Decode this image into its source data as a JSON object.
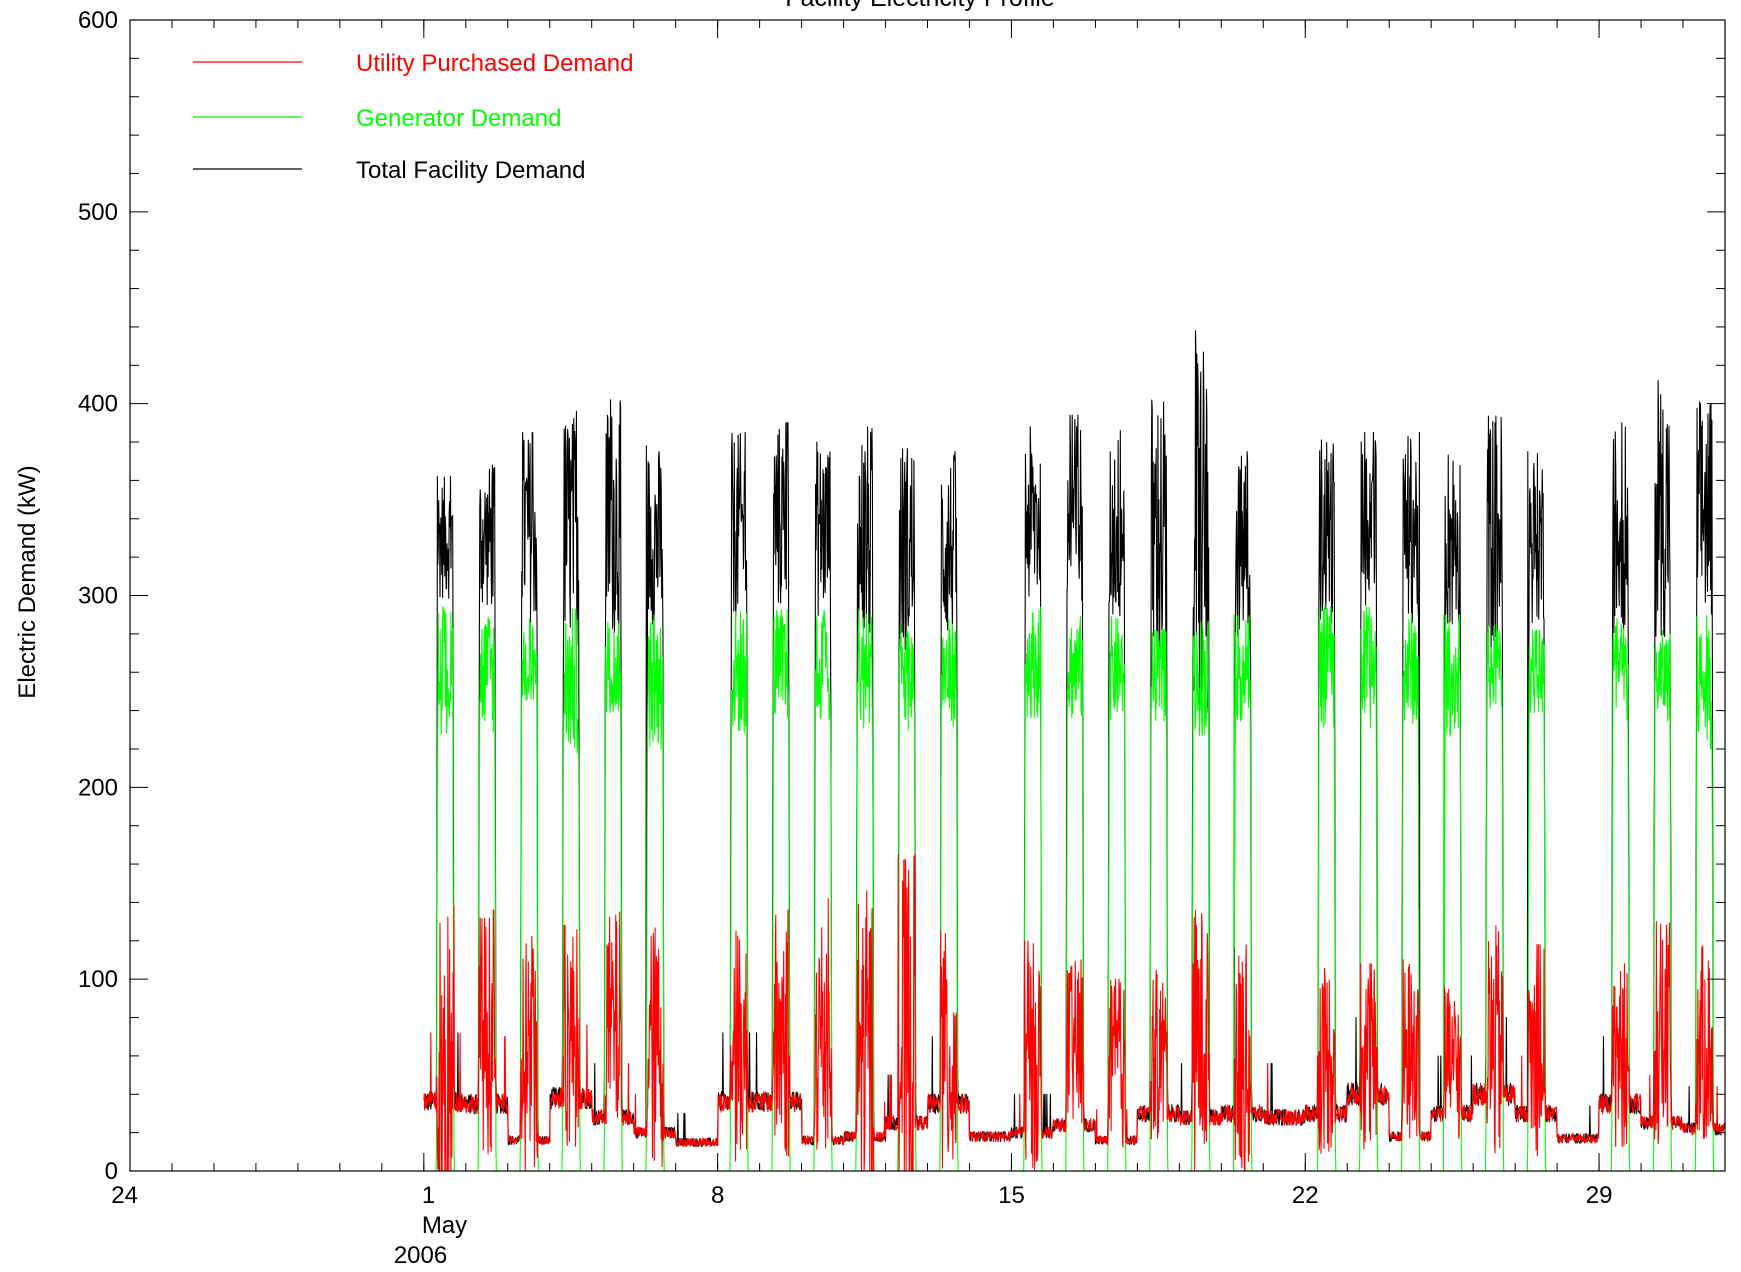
{
  "chart_data": {
    "type": "line",
    "title": "Facility Electricity Profile",
    "xlabel": "",
    "ylabel": "Electric Demand (kW)",
    "xlim": [
      "2006-04-24",
      "2006-06-01"
    ],
    "ylim": [
      0,
      600
    ],
    "x_ticks": [
      {
        "label": "24",
        "date": "2006-04-24"
      },
      {
        "label": "1",
        "date": "2006-05-01"
      },
      {
        "label": "8",
        "date": "2006-05-08"
      },
      {
        "label": "15",
        "date": "2006-05-15"
      },
      {
        "label": "22",
        "date": "2006-05-22"
      },
      {
        "label": "29",
        "date": "2006-05-29"
      }
    ],
    "x_tick_sublabels": [
      "May",
      "2006"
    ],
    "y_ticks": [
      0,
      100,
      200,
      300,
      400,
      500,
      600
    ],
    "legend_position": "top-left",
    "grid": false,
    "data_range": [
      "2006-05-01",
      "2006-05-31"
    ],
    "sample_interval_minutes": 15,
    "series": [
      {
        "name": "Utility Purchased Demand",
        "color": "#ff0000",
        "daily": [
          {
            "date": "2006-05-01",
            "peak": 138,
            "level": 30,
            "base": 36
          },
          {
            "date": "2006-05-02",
            "peak": 136,
            "level": 72,
            "base": 35
          },
          {
            "date": "2006-05-03",
            "peak": 130,
            "level": 60,
            "base": 16
          },
          {
            "date": "2006-05-04",
            "peak": 128,
            "level": 70,
            "base": 38
          },
          {
            "date": "2006-05-05",
            "peak": 135,
            "level": 75,
            "base": 28
          },
          {
            "date": "2006-05-06",
            "peak": 130,
            "level": 65,
            "base": 20
          },
          {
            "date": "2006-05-07",
            "peak": 0,
            "level": 0,
            "base": 15
          },
          {
            "date": "2006-05-08",
            "peak": 125,
            "level": 65,
            "base": 36
          },
          {
            "date": "2006-05-09",
            "peak": 136,
            "level": 70,
            "base": 36
          },
          {
            "date": "2006-05-10",
            "peak": 142,
            "level": 70,
            "base": 16
          },
          {
            "date": "2006-05-11",
            "peak": 148,
            "level": 60,
            "base": 18
          },
          {
            "date": "2006-05-12",
            "peak": 165,
            "level": 62,
            "base": 25
          },
          {
            "date": "2006-05-13",
            "peak": 125,
            "level": 58,
            "base": 35
          },
          {
            "date": "2006-05-14",
            "peak": 0,
            "level": 0,
            "base": 18
          },
          {
            "date": "2006-05-15",
            "peak": 120,
            "level": 60,
            "base": 20
          },
          {
            "date": "2006-05-16",
            "peak": 110,
            "level": 65,
            "base": 24
          },
          {
            "date": "2006-05-17",
            "peak": 100,
            "level": 55,
            "base": 16
          },
          {
            "date": "2006-05-18",
            "peak": 105,
            "level": 60,
            "base": 30
          },
          {
            "date": "2006-05-19",
            "peak": 140,
            "level": 70,
            "base": 28
          },
          {
            "date": "2006-05-20",
            "peak": 118,
            "level": 55,
            "base": 30
          },
          {
            "date": "2006-05-21",
            "peak": 0,
            "level": 0,
            "base": 28
          },
          {
            "date": "2006-05-22",
            "peak": 112,
            "level": 60,
            "base": 30
          },
          {
            "date": "2006-05-23",
            "peak": 108,
            "level": 58,
            "base": 40
          },
          {
            "date": "2006-05-24",
            "peak": 112,
            "level": 62,
            "base": 18
          },
          {
            "date": "2006-05-25",
            "peak": 95,
            "level": 55,
            "base": 30
          },
          {
            "date": "2006-05-26",
            "peak": 128,
            "level": 65,
            "base": 40
          },
          {
            "date": "2006-05-27",
            "peak": 118,
            "level": 62,
            "base": 30
          },
          {
            "date": "2006-05-28",
            "peak": 0,
            "level": 0,
            "base": 17
          },
          {
            "date": "2006-05-29",
            "peak": 108,
            "level": 60,
            "base": 35
          },
          {
            "date": "2006-05-30",
            "peak": 130,
            "level": 70,
            "base": 25
          },
          {
            "date": "2006-05-31",
            "peak": 118,
            "level": 65,
            "base": 22
          }
        ]
      },
      {
        "name": "Generator Demand",
        "color": "#00ff00",
        "daily": [
          {
            "date": "2006-05-01",
            "peak": 294,
            "level": 260,
            "base": 0
          },
          {
            "date": "2006-05-02",
            "peak": 293,
            "level": 260,
            "base": 0
          },
          {
            "date": "2006-05-03",
            "peak": 288,
            "level": 265,
            "base": 0
          },
          {
            "date": "2006-05-04",
            "peak": 294,
            "level": 255,
            "base": 0
          },
          {
            "date": "2006-05-05",
            "peak": 286,
            "level": 262,
            "base": 0
          },
          {
            "date": "2006-05-06",
            "peak": 290,
            "level": 255,
            "base": 0
          },
          {
            "date": "2006-05-07",
            "peak": 0,
            "level": 0,
            "base": 0
          },
          {
            "date": "2006-05-08",
            "peak": 294,
            "level": 260,
            "base": 0
          },
          {
            "date": "2006-05-09",
            "peak": 294,
            "level": 262,
            "base": 0
          },
          {
            "date": "2006-05-10",
            "peak": 292,
            "level": 262,
            "base": 0
          },
          {
            "date": "2006-05-11",
            "peak": 293,
            "level": 260,
            "base": 0
          },
          {
            "date": "2006-05-12",
            "peak": 288,
            "level": 258,
            "base": 0
          },
          {
            "date": "2006-05-13",
            "peak": 288,
            "level": 260,
            "base": 0
          },
          {
            "date": "2006-05-14",
            "peak": 0,
            "level": 0,
            "base": 0
          },
          {
            "date": "2006-05-15",
            "peak": 294,
            "level": 265,
            "base": 0
          },
          {
            "date": "2006-05-16",
            "peak": 290,
            "level": 262,
            "base": 0
          },
          {
            "date": "2006-05-17",
            "peak": 289,
            "level": 262,
            "base": 0
          },
          {
            "date": "2006-05-18",
            "peak": 282,
            "level": 258,
            "base": 0
          },
          {
            "date": "2006-05-19",
            "peak": 290,
            "level": 258,
            "base": 0
          },
          {
            "date": "2006-05-20",
            "peak": 290,
            "level": 262,
            "base": 0
          },
          {
            "date": "2006-05-21",
            "peak": 0,
            "level": 0,
            "base": 0
          },
          {
            "date": "2006-05-22",
            "peak": 294,
            "level": 262,
            "base": 0
          },
          {
            "date": "2006-05-23",
            "peak": 294,
            "level": 262,
            "base": 0
          },
          {
            "date": "2006-05-24",
            "peak": 292,
            "level": 262,
            "base": 0
          },
          {
            "date": "2006-05-25",
            "peak": 290,
            "level": 258,
            "base": 0
          },
          {
            "date": "2006-05-26",
            "peak": 285,
            "level": 262,
            "base": 0
          },
          {
            "date": "2006-05-27",
            "peak": 282,
            "level": 260,
            "base": 0
          },
          {
            "date": "2006-05-28",
            "peak": 0,
            "level": 0,
            "base": 0
          },
          {
            "date": "2006-05-29",
            "peak": 288,
            "level": 258,
            "base": 0
          },
          {
            "date": "2006-05-30",
            "peak": 282,
            "level": 258,
            "base": 0
          },
          {
            "date": "2006-05-31",
            "peak": 290,
            "level": 255,
            "base": 0
          }
        ]
      },
      {
        "name": "Total Facility Demand",
        "color": "#000000",
        "daily": [
          {
            "date": "2006-05-01",
            "peak": 362,
            "level": 330,
            "base": 36
          },
          {
            "date": "2006-05-02",
            "peak": 368,
            "level": 330,
            "base": 35
          },
          {
            "date": "2006-05-03",
            "peak": 385,
            "level": 335,
            "base": 16
          },
          {
            "date": "2006-05-04",
            "peak": 396,
            "level": 335,
            "base": 38
          },
          {
            "date": "2006-05-05",
            "peak": 402,
            "level": 340,
            "base": 28
          },
          {
            "date": "2006-05-06",
            "peak": 378,
            "level": 330,
            "base": 20
          },
          {
            "date": "2006-05-07",
            "peak": 0,
            "level": 0,
            "base": 15
          },
          {
            "date": "2006-05-08",
            "peak": 385,
            "level": 335,
            "base": 36
          },
          {
            "date": "2006-05-09",
            "peak": 390,
            "level": 340,
            "base": 36
          },
          {
            "date": "2006-05-10",
            "peak": 382,
            "level": 335,
            "base": 16
          },
          {
            "date": "2006-05-11",
            "peak": 390,
            "level": 330,
            "base": 18
          },
          {
            "date": "2006-05-12",
            "peak": 382,
            "level": 325,
            "base": 25
          },
          {
            "date": "2006-05-13",
            "peak": 375,
            "level": 325,
            "base": 35
          },
          {
            "date": "2006-05-14",
            "peak": 0,
            "level": 0,
            "base": 18
          },
          {
            "date": "2006-05-15",
            "peak": 388,
            "level": 340,
            "base": 20
          },
          {
            "date": "2006-05-16",
            "peak": 394,
            "level": 340,
            "base": 24
          },
          {
            "date": "2006-05-17",
            "peak": 386,
            "level": 335,
            "base": 16
          },
          {
            "date": "2006-05-18",
            "peak": 408,
            "level": 330,
            "base": 30
          },
          {
            "date": "2006-05-19",
            "peak": 447,
            "level": 335,
            "base": 28
          },
          {
            "date": "2006-05-20",
            "peak": 375,
            "level": 325,
            "base": 30
          },
          {
            "date": "2006-05-21",
            "peak": 0,
            "level": 0,
            "base": 28
          },
          {
            "date": "2006-05-22",
            "peak": 385,
            "level": 335,
            "base": 30
          },
          {
            "date": "2006-05-23",
            "peak": 385,
            "level": 340,
            "base": 40
          },
          {
            "date": "2006-05-24",
            "peak": 385,
            "level": 335,
            "base": 18
          },
          {
            "date": "2006-05-25",
            "peak": 380,
            "level": 330,
            "base": 30
          },
          {
            "date": "2006-05-26",
            "peak": 398,
            "level": 335,
            "base": 40
          },
          {
            "date": "2006-05-27",
            "peak": 375,
            "level": 330,
            "base": 30
          },
          {
            "date": "2006-05-28",
            "peak": 0,
            "level": 0,
            "base": 17
          },
          {
            "date": "2006-05-29",
            "peak": 390,
            "level": 335,
            "base": 35
          },
          {
            "date": "2006-05-30",
            "peak": 412,
            "level": 345,
            "base": 25
          },
          {
            "date": "2006-05-31",
            "peak": 404,
            "level": 345,
            "base": 22
          }
        ]
      }
    ]
  }
}
